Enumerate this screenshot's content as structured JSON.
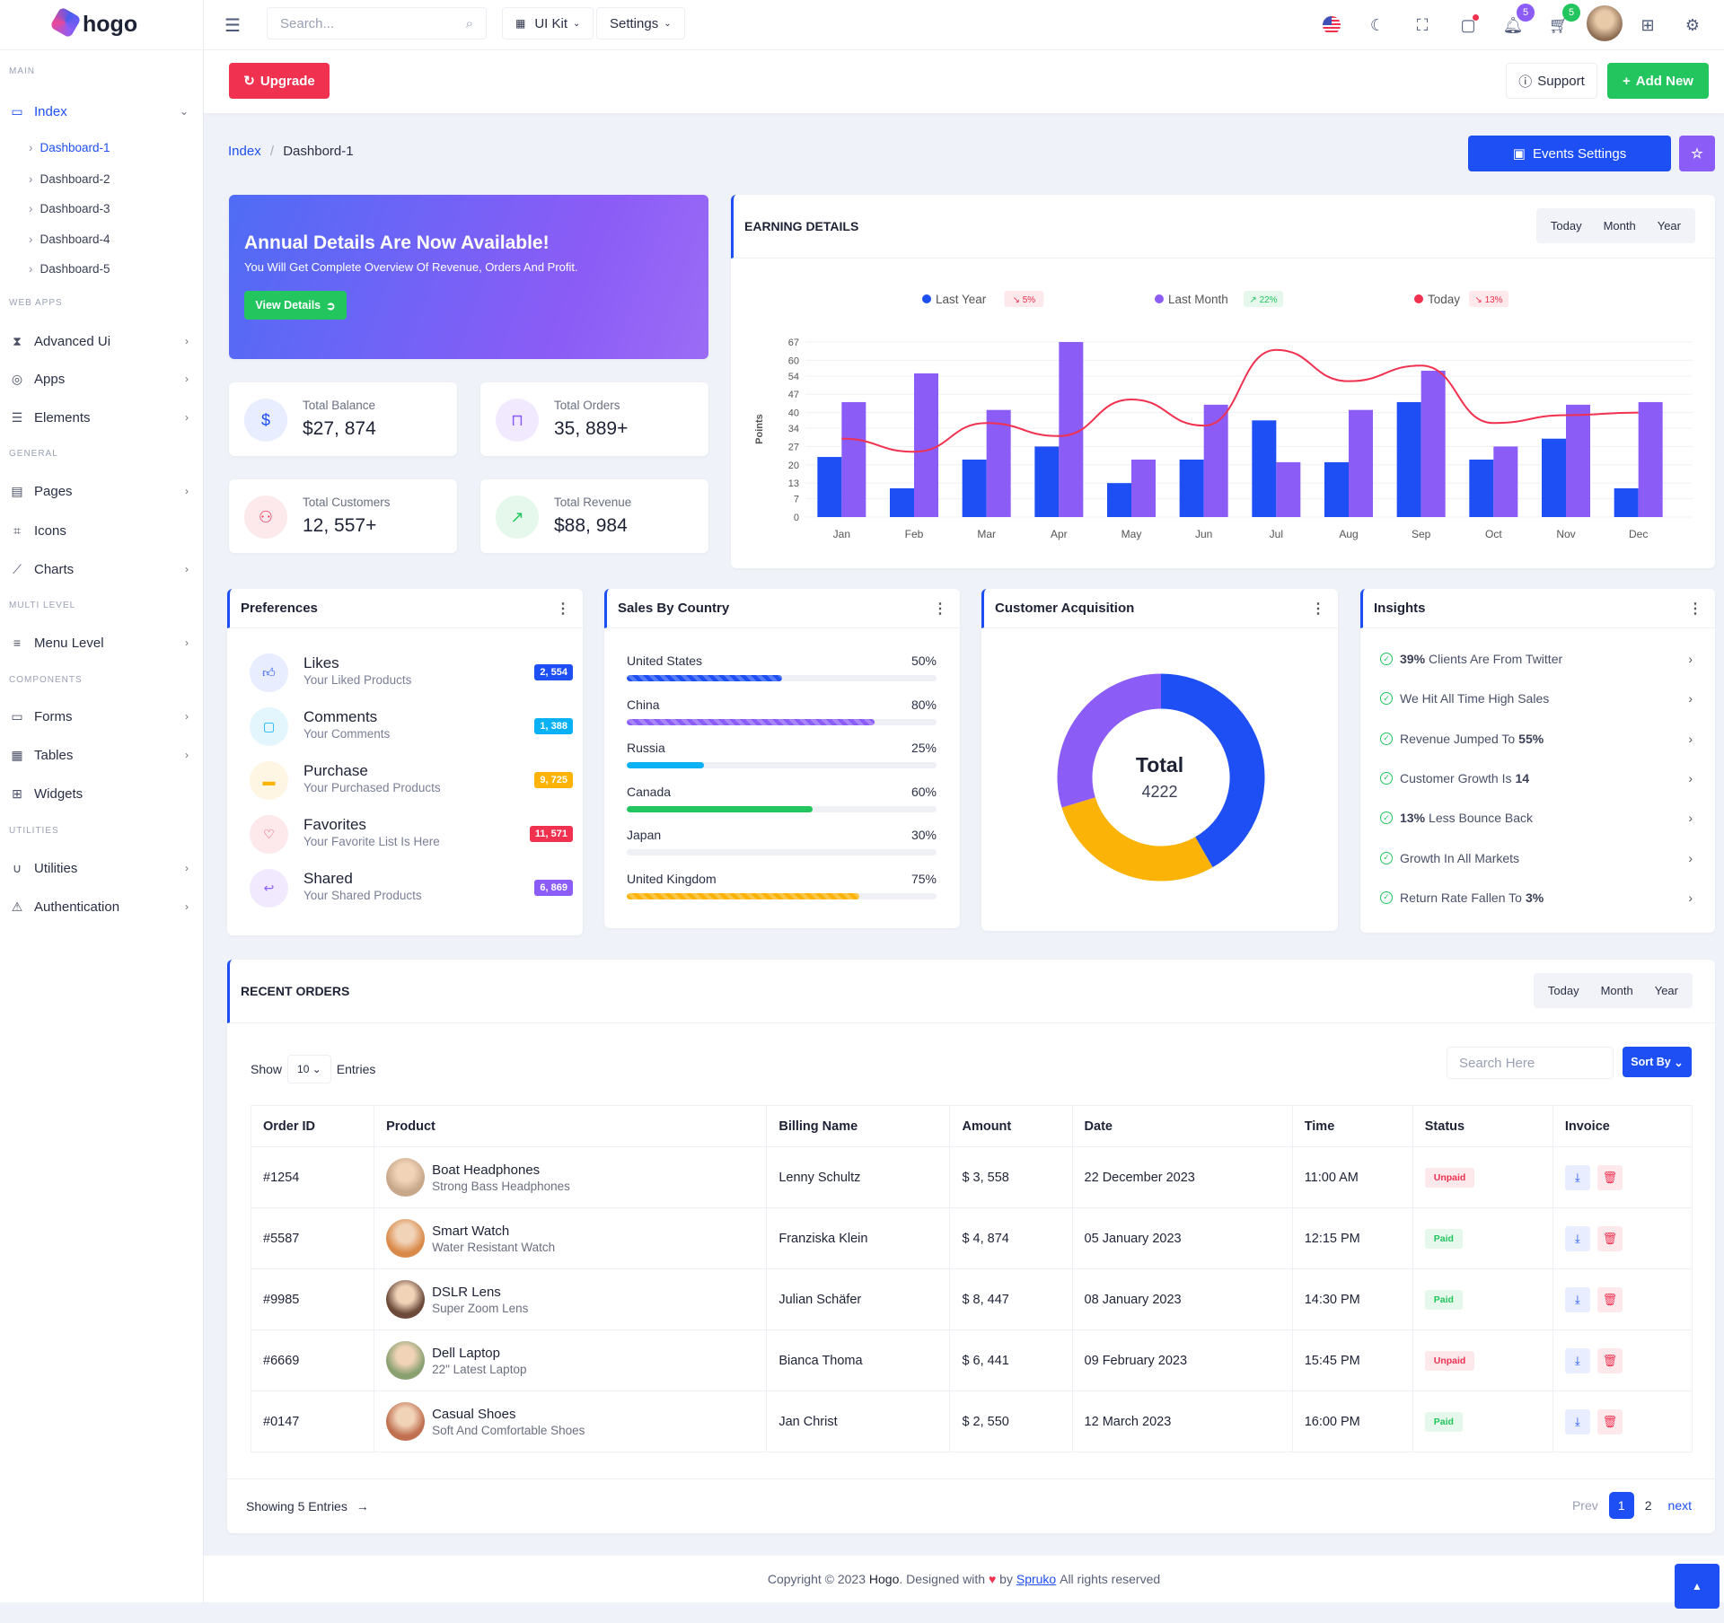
{
  "brand": "hogo",
  "sidebar": {
    "categories": [
      "MAIN",
      "WEB APPS",
      "GENERAL",
      "MULTI LEVEL",
      "COMPONENTS",
      "UTILITIES"
    ],
    "index": {
      "label": "Index",
      "icon": "monitor-icon"
    },
    "subitems": [
      "Dashboard-1",
      "Dashboard-2",
      "Dashboard-3",
      "Dashboard-4",
      "Dashboard-5"
    ],
    "items": [
      {
        "label": "Advanced Ui",
        "icon": "hourglass-icon",
        "chevron": true
      },
      {
        "label": "Apps",
        "icon": "apps-icon",
        "chevron": true
      },
      {
        "label": "Elements",
        "icon": "layers-icon",
        "chevron": true
      },
      {
        "label": "Pages",
        "icon": "file-icon",
        "chevron": true
      },
      {
        "label": "Icons",
        "icon": "vector-icon",
        "chevron": false
      },
      {
        "label": "Charts",
        "icon": "chart-icon",
        "chevron": true
      },
      {
        "label": "Menu Level",
        "icon": "list-icon",
        "chevron": true
      },
      {
        "label": "Forms",
        "icon": "folder-icon",
        "chevron": true
      },
      {
        "label": "Tables",
        "icon": "table-icon",
        "chevron": true
      },
      {
        "label": "Widgets",
        "icon": "grid-icon",
        "chevron": false
      },
      {
        "label": "Utilities",
        "icon": "magnet-icon",
        "chevron": true
      },
      {
        "label": "Authentication",
        "icon": "warning-icon",
        "chevron": true
      }
    ]
  },
  "header": {
    "search_placeholder": "Search...",
    "uikit": "UI Kit",
    "settings": "Settings",
    "notifications": "5",
    "cart": "5"
  },
  "subbar": {
    "upgrade": "Upgrade",
    "support": "Support",
    "add_new": "Add New"
  },
  "breadcrumb": {
    "root": "Index",
    "current": "Dashbord-1"
  },
  "events_settings": "Events Settings",
  "banner": {
    "title": "Annual Details Are Now Available!",
    "subtitle": "You Will Get Complete Overview Of Revenue, Orders And Profit.",
    "button": "View Details"
  },
  "stats": [
    {
      "label": "Total Balance",
      "value": "$27, 874",
      "icon": "dollar-icon",
      "color": "#1d4ff5",
      "bg": "#e8edff"
    },
    {
      "label": "Total Orders",
      "value": "35, 889+",
      "icon": "bag-icon",
      "color": "#8b5cf6",
      "bg": "#f1eafe"
    },
    {
      "label": "Total Customers",
      "value": "12, 557+",
      "icon": "user-plus-icon",
      "color": "#f43f5e",
      "bg": "#fde8ec"
    },
    {
      "label": "Total Revenue",
      "value": "$88, 984",
      "icon": "trend-up-icon",
      "color": "#22c55e",
      "bg": "#e6f8ec"
    }
  ],
  "earning": {
    "title": "EARNING DETAILS",
    "tabs": [
      "Today",
      "Month",
      "Year"
    ]
  },
  "chart_data": {
    "type": "bar",
    "categories": [
      "Jan",
      "Feb",
      "Mar",
      "Apr",
      "May",
      "Jun",
      "Jul",
      "Aug",
      "Sep",
      "Oct",
      "Nov",
      "Dec"
    ],
    "ylabel": "Points",
    "yticks": [
      0,
      7,
      13,
      20,
      27,
      34,
      40,
      47,
      54,
      60,
      67
    ],
    "ylim": [
      0,
      67
    ],
    "grid": true,
    "legend": "top",
    "series": [
      {
        "name": "Last Year",
        "type": "bar",
        "color": "#1d4ff5",
        "badge": "5%",
        "badge_dir": "down",
        "values": [
          23,
          11,
          22,
          27,
          13,
          22,
          37,
          21,
          44,
          22,
          30,
          11
        ]
      },
      {
        "name": "Last Month",
        "type": "bar",
        "color": "#8b5cf6",
        "badge": "22%",
        "badge_dir": "up",
        "values": [
          44,
          55,
          41,
          67,
          22,
          43,
          21,
          41,
          56,
          27,
          43,
          44
        ]
      },
      {
        "name": "Today",
        "type": "line",
        "color": "#f0314f",
        "badge": "13%",
        "badge_dir": "down",
        "values": [
          30,
          25,
          36,
          31,
          45,
          35,
          64,
          52,
          58,
          36,
          39,
          40
        ]
      }
    ]
  },
  "preferences": {
    "title": "Preferences",
    "items": [
      {
        "title": "Likes",
        "sub": "Your Liked Products",
        "count": "2, 554",
        "icon": "thumbs-up-icon",
        "color": "#1d4ff5",
        "bg": "#e8edff"
      },
      {
        "title": "Comments",
        "sub": "Your Comments",
        "count": "1, 388",
        "icon": "comment-icon",
        "color": "#0ab2f5",
        "bg": "#e3f6fe"
      },
      {
        "title": "Purchase",
        "sub": "Your Purchased Products",
        "count": "9, 725",
        "icon": "wallet-icon",
        "color": "#fbb308",
        "bg": "#fef6e3"
      },
      {
        "title": "Favorites",
        "sub": "Your Favorite List Is Here",
        "count": "11, 571",
        "icon": "heart-icon",
        "color": "#f0314f",
        "bg": "#fde8ec"
      },
      {
        "title": "Shared",
        "sub": "Your Shared Products",
        "count": "6, 869",
        "icon": "share-icon",
        "color": "#8b5cf6",
        "bg": "#f1eafe"
      }
    ]
  },
  "sales": {
    "title": "Sales By Country",
    "items": [
      {
        "country": "United States",
        "percent": 50,
        "label": "50%",
        "color": "#1d4ff5",
        "striped": true
      },
      {
        "country": "China",
        "percent": 80,
        "label": "80%",
        "color": "#8b5cf6",
        "striped": true
      },
      {
        "country": "Russia",
        "percent": 25,
        "label": "25%",
        "color": "#0ab2f5",
        "striped": false
      },
      {
        "country": "Canada",
        "percent": 60,
        "label": "60%",
        "color": "#22c55e",
        "striped": false
      },
      {
        "country": "Japan",
        "percent": 30,
        "label": "30%",
        "color": "#eef0f6",
        "striped": false
      },
      {
        "country": "United Kingdom",
        "percent": 75,
        "label": "75%",
        "color": "#fbb308",
        "striped": true
      }
    ]
  },
  "acquisition": {
    "title": "Customer Acquisition",
    "total_label": "Total",
    "total": "4222",
    "segments": [
      {
        "fraction": 0.417,
        "color": "#1d4ff5"
      },
      {
        "fraction": 0.286,
        "color": "#fbb308"
      },
      {
        "fraction": 0.297,
        "color": "#8b5cf6"
      }
    ]
  },
  "insights": {
    "title": "Insights",
    "items": [
      {
        "bold": "39%",
        "text": "Clients Are From Twitter",
        "bold_pos": "start"
      },
      {
        "bold": "",
        "text": "We Hit All Time High Sales",
        "bold_pos": "start"
      },
      {
        "bold": "55%",
        "text": "Revenue Jumped To",
        "bold_pos": "end"
      },
      {
        "bold": "14",
        "text": "Customer Growth Is",
        "bold_pos": "end"
      },
      {
        "bold": "13%",
        "text": "Less Bounce Back",
        "bold_pos": "start"
      },
      {
        "bold": "",
        "text": "Growth In All Markets",
        "bold_pos": "start"
      },
      {
        "bold": "3%",
        "text": "Return Rate Fallen To",
        "bold_pos": "end"
      }
    ]
  },
  "orders": {
    "title": "RECENT ORDERS",
    "tabs": [
      "Today",
      "Month",
      "Year"
    ],
    "show": "Show",
    "entries_value": "10",
    "entries": "Entries",
    "search_placeholder": "Search Here",
    "sort": "Sort By",
    "columns": [
      "Order ID",
      "Product",
      "Billing Name",
      "Amount",
      "Date",
      "Time",
      "Status",
      "Invoice"
    ],
    "rows": [
      {
        "id": "#1254",
        "product": "Boat Headphones",
        "desc": "Strong Bass Headphones",
        "billing": "Lenny Schultz",
        "amount": "$ 3, 558",
        "date": "22 December 2023",
        "time": "11:00 AM",
        "status": "Unpaid"
      },
      {
        "id": "#5587",
        "product": "Smart Watch",
        "desc": "Water Resistant Watch",
        "billing": "Franziska Klein",
        "amount": "$ 4, 874",
        "date": "05 January 2023",
        "time": "12:15 PM",
        "status": "Paid"
      },
      {
        "id": "#9985",
        "product": "DSLR Lens",
        "desc": "Super Zoom Lens",
        "billing": "Julian Schäfer",
        "amount": "$ 8, 447",
        "date": "08 January 2023",
        "time": "14:30 PM",
        "status": "Paid"
      },
      {
        "id": "#6669",
        "product": "Dell Laptop",
        "desc": "22\" Latest Laptop",
        "billing": "Bianca Thoma",
        "amount": "$ 6, 441",
        "date": "09 February 2023",
        "time": "15:45 PM",
        "status": "Unpaid"
      },
      {
        "id": "#0147",
        "product": "Casual Shoes",
        "desc": "Soft And Comfortable Shoes",
        "billing": "Jan Christ",
        "amount": "$ 2, 550",
        "date": "12 March 2023",
        "time": "16:00 PM",
        "status": "Paid"
      }
    ],
    "showing": "Showing 5 Entries",
    "prev": "Prev",
    "pages": [
      "1",
      "2"
    ],
    "current_page": "1",
    "next": "next"
  },
  "footer": {
    "pre": "Copyright © 2023",
    "brand": "Hogo",
    "mid": ". Designed with",
    "by": "by",
    "company": "Spruko",
    "post": "All rights reserved"
  }
}
